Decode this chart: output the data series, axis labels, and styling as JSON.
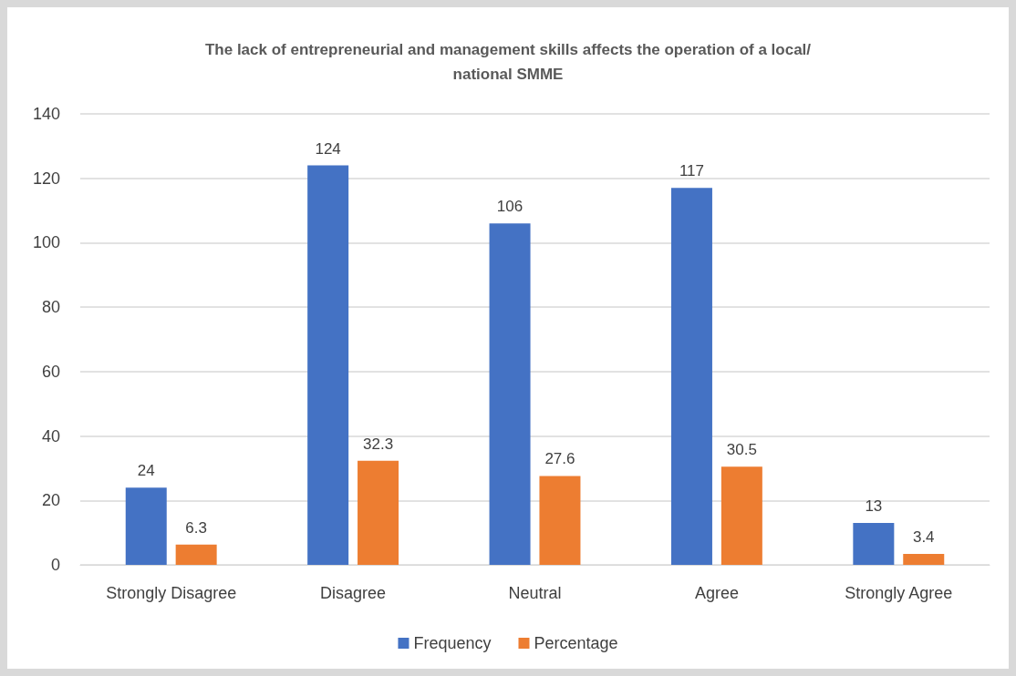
{
  "chart_data": {
    "type": "bar",
    "title": "The lack of entrepreneurial and management skills affects the operation of a local/national SMME",
    "categories": [
      "Strongly Disagree",
      "Disagree",
      "Neutral",
      "Agree",
      "Strongly Agree"
    ],
    "series": [
      {
        "name": "Frequency",
        "color": "#4472c4",
        "values": [
          24,
          124,
          106,
          117,
          13
        ]
      },
      {
        "name": "Percentage",
        "color": "#ed7d31",
        "values": [
          6.3,
          32.3,
          27.6,
          30.5,
          3.4
        ]
      }
    ],
    "ylim": [
      0,
      140
    ],
    "yticks": [
      0,
      20,
      40,
      60,
      80,
      100,
      120,
      140
    ],
    "grid": "y",
    "legend": "bottom",
    "data_labels": true
  }
}
